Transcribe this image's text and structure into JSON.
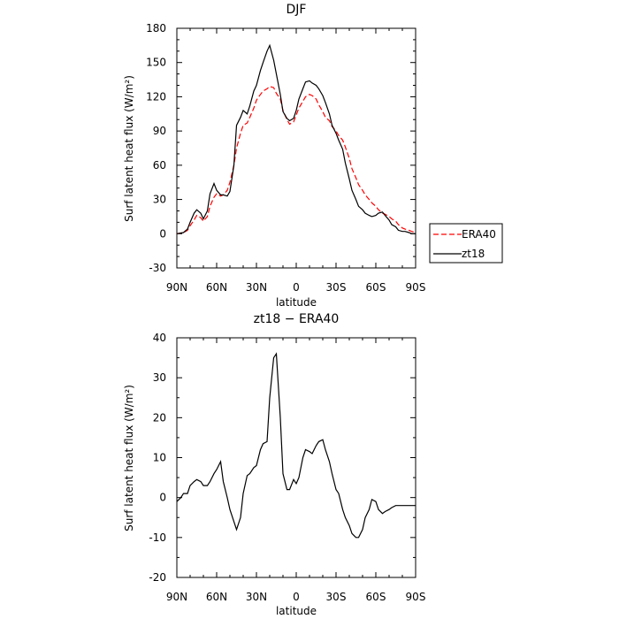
{
  "chart_data": [
    {
      "type": "line",
      "title": "DJF",
      "xlabel": "latitude",
      "ylabel": "Surf latent heat flux (W/m²)",
      "xlim": [
        -90,
        90
      ],
      "ylim": [
        -30,
        180
      ],
      "xticks": [
        -90,
        -60,
        -30,
        0,
        30,
        60,
        90
      ],
      "xtick_labels": [
        "90N",
        "60N",
        "30N",
        "0",
        "30S",
        "60S",
        "90S"
      ],
      "yticks": [
        -30,
        0,
        30,
        60,
        90,
        120,
        150,
        180
      ],
      "ytick_labels": [
        "-30",
        "0",
        "30",
        "60",
        "90",
        "120",
        "150",
        "180"
      ],
      "legend_position": "right",
      "series": [
        {
          "name": "ERA40",
          "color": "#ff0000",
          "dash": "dashed",
          "x": [
            -90,
            -85,
            -82,
            -80,
            -77,
            -75,
            -72,
            -70,
            -67,
            -65,
            -62,
            -60,
            -57,
            -55,
            -52,
            -50,
            -47,
            -45,
            -42,
            -40,
            -37,
            -35,
            -32,
            -30,
            -27,
            -25,
            -22,
            -20,
            -17,
            -15,
            -12,
            -10,
            -7,
            -5,
            -2,
            0,
            2,
            5,
            7,
            10,
            12,
            15,
            17,
            20,
            22,
            25,
            27,
            30,
            32,
            35,
            37,
            40,
            42,
            45,
            47,
            50,
            52,
            55,
            57,
            60,
            62,
            65,
            67,
            70,
            72,
            75,
            77,
            80,
            82,
            85,
            87,
            90
          ],
          "y": [
            0,
            1,
            3,
            7,
            12,
            16,
            14,
            11,
            15,
            24,
            32,
            35,
            33,
            34,
            38,
            45,
            60,
            75,
            88,
            95,
            97,
            102,
            110,
            117,
            122,
            125,
            127,
            129,
            128,
            123,
            118,
            108,
            100,
            96,
            98,
            104,
            110,
            116,
            120,
            122,
            121,
            118,
            113,
            107,
            102,
            99,
            94,
            90,
            86,
            82,
            76,
            66,
            57,
            49,
            43,
            38,
            34,
            30,
            27,
            24,
            21,
            18,
            17,
            15,
            13,
            11,
            8,
            5,
            4,
            3,
            2,
            1
          ]
        },
        {
          "name": "zt18",
          "color": "#000000",
          "dash": "solid",
          "x": [
            -90,
            -85,
            -82,
            -80,
            -77,
            -75,
            -72,
            -70,
            -67,
            -65,
            -62,
            -60,
            -57,
            -55,
            -52,
            -50,
            -47,
            -45,
            -42,
            -40,
            -37,
            -35,
            -32,
            -30,
            -27,
            -25,
            -22,
            -20,
            -17,
            -15,
            -12,
            -10,
            -7,
            -5,
            -2,
            0,
            2,
            5,
            7,
            10,
            12,
            15,
            17,
            20,
            22,
            25,
            27,
            30,
            32,
            35,
            37,
            40,
            42,
            45,
            47,
            50,
            52,
            55,
            57,
            60,
            62,
            65,
            67,
            70,
            72,
            75,
            77,
            80,
            82,
            85,
            87,
            90
          ],
          "y": [
            0,
            1,
            4,
            10,
            18,
            21,
            18,
            13,
            20,
            35,
            44,
            38,
            34,
            34,
            33,
            37,
            60,
            95,
            102,
            108,
            105,
            112,
            125,
            130,
            143,
            150,
            160,
            165,
            152,
            140,
            122,
            107,
            101,
            99,
            101,
            108,
            118,
            127,
            133,
            134,
            132,
            130,
            127,
            121,
            115,
            105,
            95,
            88,
            82,
            74,
            62,
            48,
            38,
            30,
            24,
            21,
            18,
            16,
            15,
            16,
            18,
            19,
            16,
            12,
            8,
            6,
            3,
            2,
            2,
            1,
            0,
            0
          ]
        }
      ]
    },
    {
      "type": "line",
      "title": "zt18 − ERA40",
      "xlabel": "latitude",
      "ylabel": "Surf latent heat flux (W/m²)",
      "xlim": [
        -90,
        90
      ],
      "ylim": [
        -20,
        40
      ],
      "xticks": [
        -90,
        -60,
        -30,
        0,
        30,
        60,
        90
      ],
      "xtick_labels": [
        "90N",
        "60N",
        "30N",
        "0",
        "30S",
        "60S",
        "90S"
      ],
      "yticks": [
        -20,
        -10,
        0,
        10,
        20,
        30,
        40
      ],
      "ytick_labels": [
        "-20",
        "-10",
        "0",
        "10",
        "20",
        "30",
        "40"
      ],
      "series": [
        {
          "color": "#000000",
          "dash": "solid",
          "x": [
            -90,
            -87,
            -85,
            -82,
            -80,
            -77,
            -75,
            -72,
            -70,
            -67,
            -65,
            -62,
            -60,
            -57,
            -55,
            -52,
            -50,
            -47,
            -45,
            -42,
            -40,
            -37,
            -35,
            -32,
            -30,
            -27,
            -25,
            -22,
            -20,
            -17,
            -15,
            -12,
            -10,
            -7,
            -5,
            -2,
            0,
            2,
            5,
            7,
            10,
            12,
            15,
            17,
            20,
            22,
            25,
            27,
            30,
            32,
            35,
            37,
            40,
            42,
            45,
            47,
            50,
            52,
            55,
            57,
            60,
            62,
            65,
            67,
            70,
            72,
            75,
            77,
            80,
            82,
            85,
            87,
            90
          ],
          "y": [
            -1,
            0,
            1,
            1,
            3,
            4,
            4.5,
            4,
            3,
            3,
            4,
            6,
            7,
            9,
            4,
            0,
            -3,
            -6,
            -8,
            -5,
            1,
            5.5,
            6,
            7.5,
            8,
            12,
            13.5,
            14,
            25,
            35,
            36,
            20,
            6,
            2,
            2,
            4.5,
            3.5,
            5,
            10,
            12,
            11.5,
            11,
            13,
            14,
            14.5,
            12,
            9,
            6,
            2,
            1,
            -3,
            -5,
            -7,
            -9,
            -10,
            -10,
            -8,
            -5,
            -3,
            -0.5,
            -1,
            -3,
            -4,
            -3.5,
            -3,
            -2.5,
            -2,
            -2,
            -2,
            -2,
            -2,
            -2,
            -2
          ]
        }
      ]
    }
  ]
}
